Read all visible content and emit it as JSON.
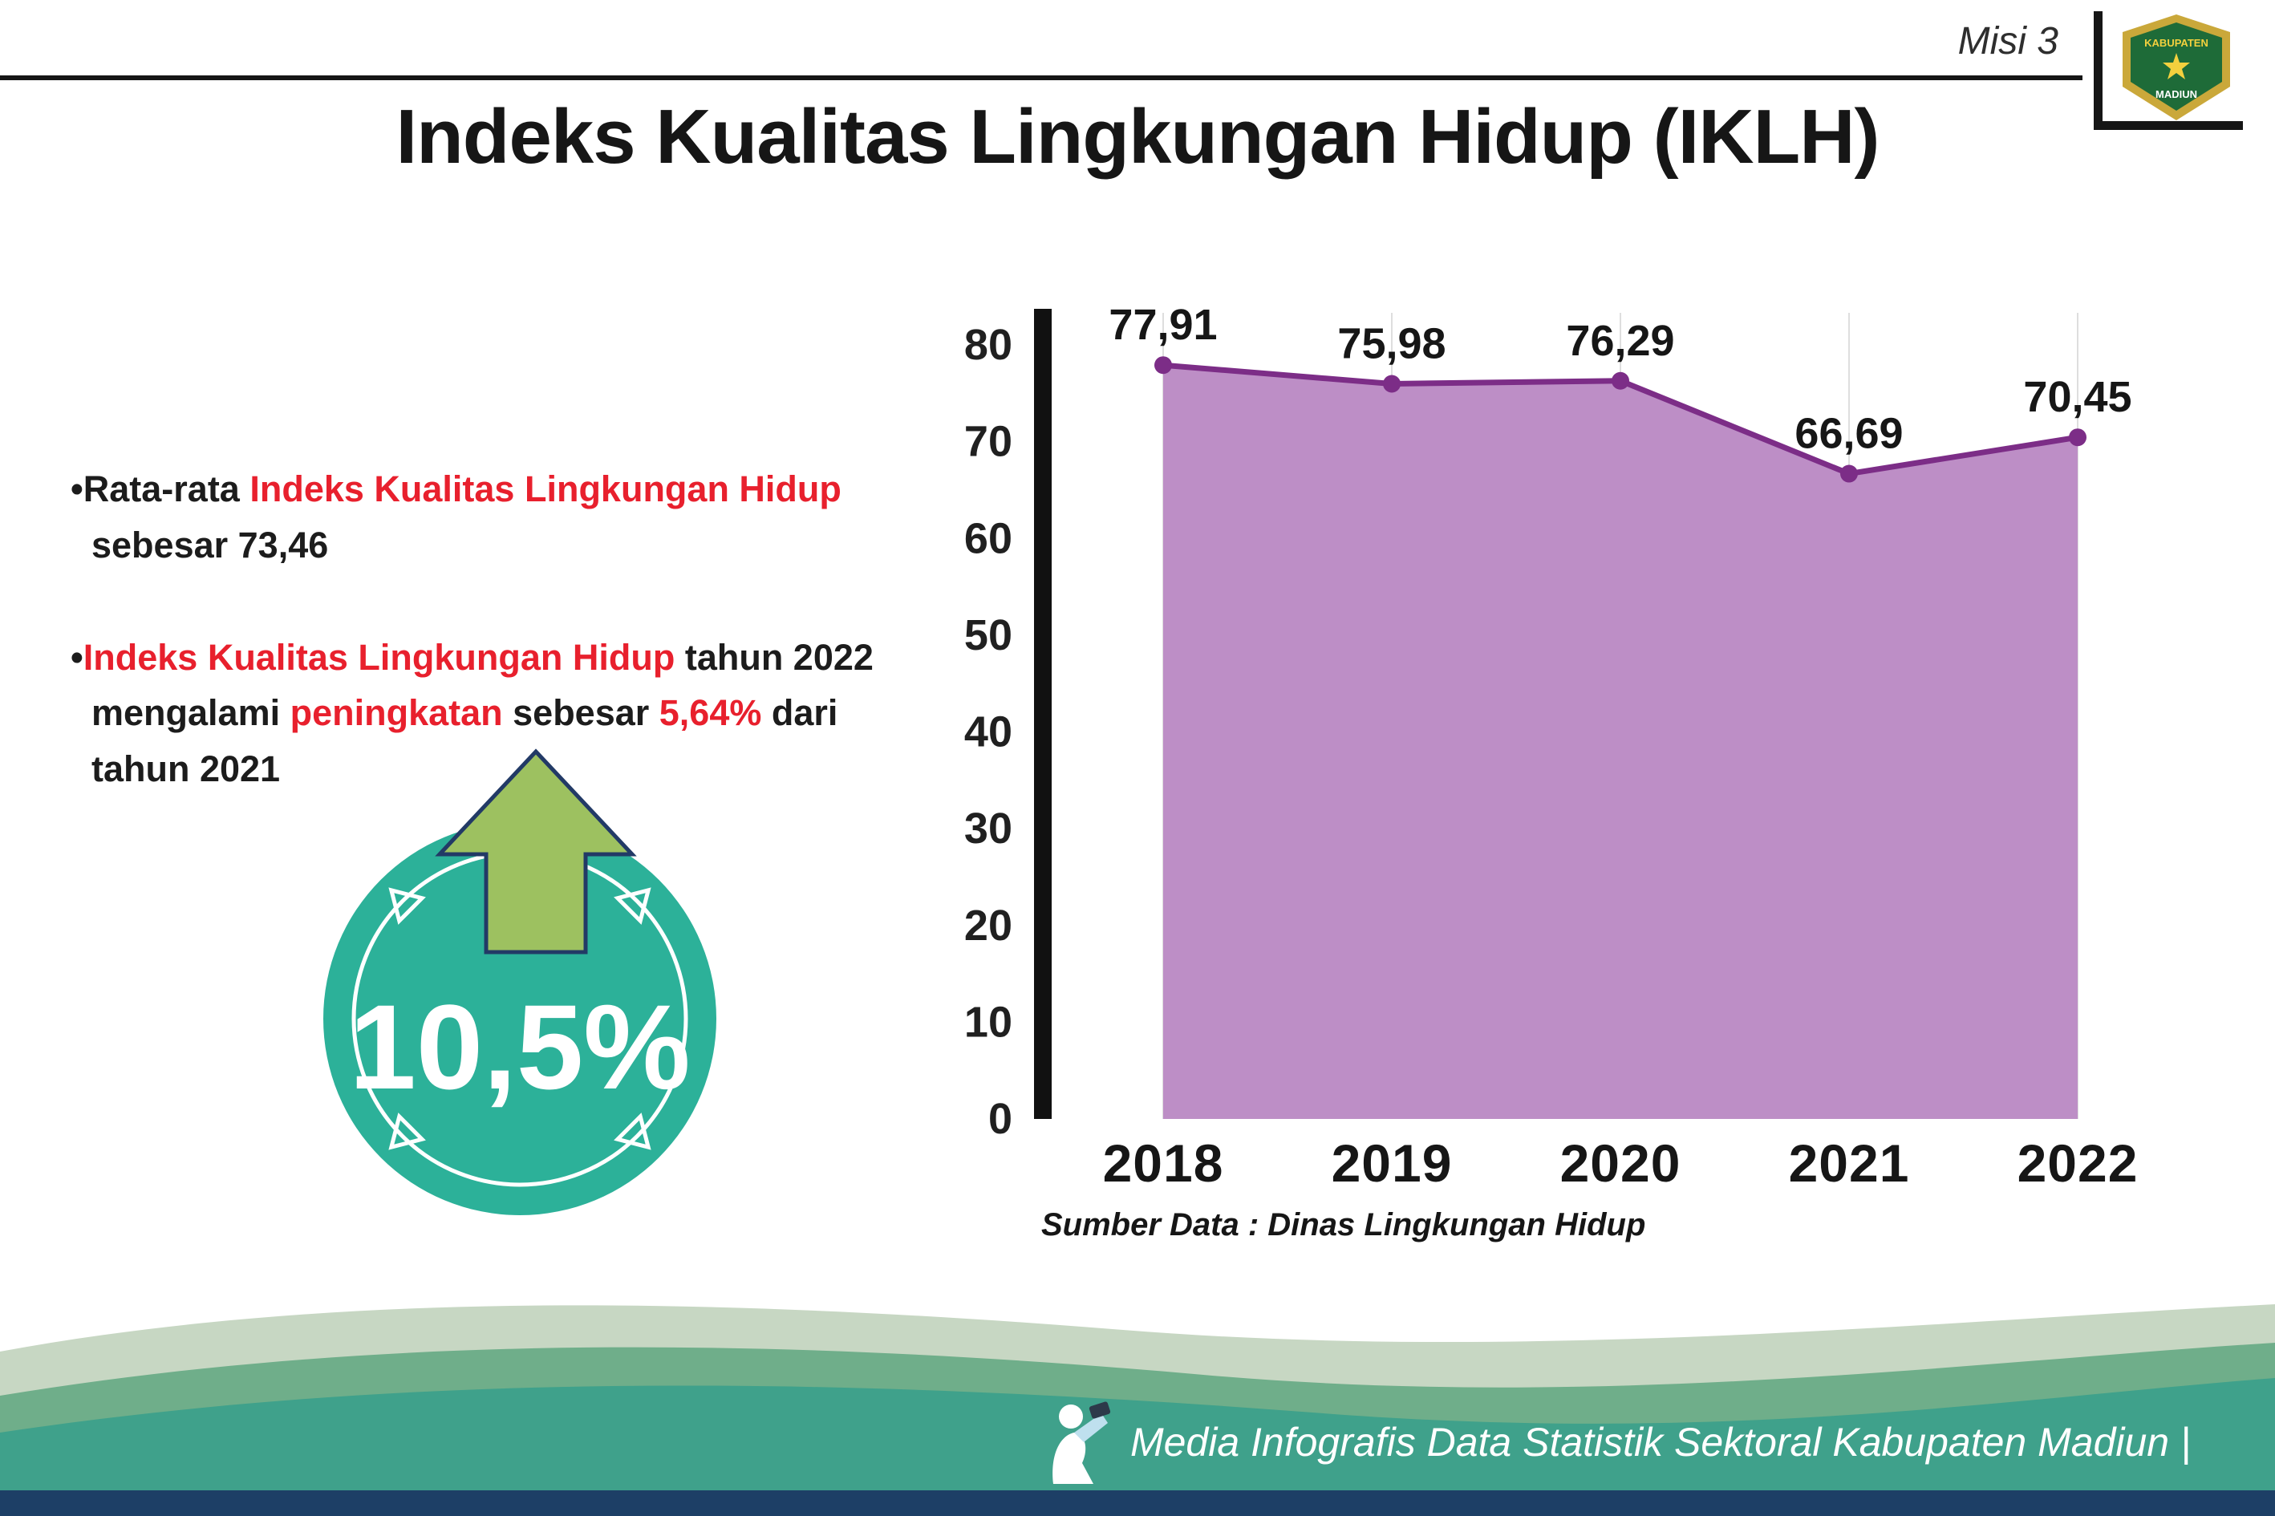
{
  "header": {
    "misi_label": "Misi 3",
    "title": "Indeks Kualitas Lingkungan Hidup (IKLH)"
  },
  "logo": {
    "line1": "KABUPATEN",
    "line2": "MADIUN"
  },
  "notes": {
    "b1_s1": "•Rata-rata ",
    "b1_s2": "Indeks Kualitas Lingkungan Hidup",
    "b1_line2": "sebesar 73,46",
    "b2_s1": "•",
    "b2_s2": "Indeks Kualitas Lingkungan Hidup",
    "b2_s3": " tahun 2022",
    "b2_l2_s1": "mengalami ",
    "b2_l2_s2": "peningkatan",
    "b2_l2_s3": " sebesar ",
    "b2_l2_s4": "5,64%",
    "b2_l2_s5": " dari",
    "b2_line3": "tahun 2021"
  },
  "badge": {
    "value": "10,5%"
  },
  "chart_data": {
    "type": "area",
    "title": "Indeks Kualitas Lingkungan Hidup (IKLH)",
    "categories": [
      "2018",
      "2019",
      "2020",
      "2021",
      "2022"
    ],
    "values": [
      77.91,
      75.98,
      76.29,
      66.69,
      70.45
    ],
    "value_labels": [
      "77,91",
      "75,98",
      "76,29",
      "66,69",
      "70,45"
    ],
    "xlabel": "",
    "ylabel": "",
    "ylim": [
      0,
      80
    ],
    "yticks": [
      0,
      10,
      20,
      30,
      40,
      50,
      60,
      70,
      80
    ],
    "grid": "vertical-light",
    "legend": "none",
    "fill_color": "#bd8ec6",
    "line_color": "#7c2d87",
    "source": "Sumber Data : Dinas Lingkungan Hidup"
  },
  "footer": {
    "credit": "Media Infografis Data Statistik Sektoral Kabupaten Madiun |"
  },
  "colors": {
    "accent_red": "#e8202d",
    "badge_teal": "#2cb199",
    "arrow_green": "#9dc160",
    "footer_navy": "#1d3f66",
    "footer_teal": "#3fa18b"
  }
}
